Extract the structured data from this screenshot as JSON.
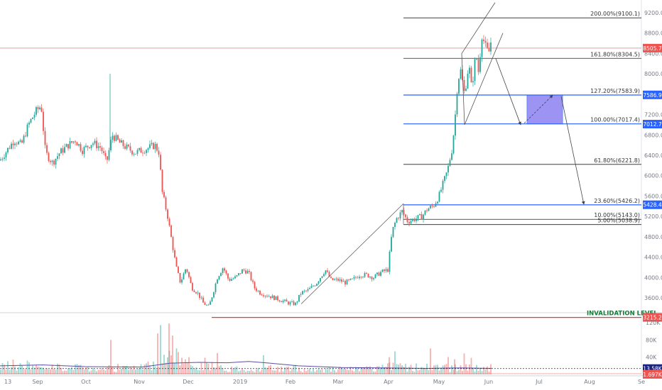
{
  "chart_data": [
    {
      "type": "candlestick",
      "title": "",
      "ylim": [
        3200,
        9300
      ],
      "y_ticks": [
        "3600.0",
        "4000.0",
        "4400.0",
        "4800.0",
        "5200.0",
        "5600.0",
        "6000.0",
        "6400.0",
        "6800.0",
        "7200.0",
        "7600.0",
        "8000.0",
        "8400.0",
        "8800.0",
        "9200.0"
      ],
      "x_ticks": [
        "13",
        "Sep",
        "Oct",
        "Nov",
        "Dec",
        "2019",
        "Feb",
        "Mar",
        "Apr",
        "May",
        "Jun",
        "Jul",
        "Aug",
        "Se"
      ],
      "grid": false,
      "series": [
        {
          "name": "price",
          "x": [
            "2018-08-13",
            "2018-08-20",
            "2018-08-27",
            "2018-09-03",
            "2018-09-10",
            "2018-09-17",
            "2018-09-24",
            "2018-10-01",
            "2018-10-08",
            "2018-10-15",
            "2018-10-22",
            "2018-10-29",
            "2018-11-05",
            "2018-11-12",
            "2018-11-19",
            "2018-11-26",
            "2018-12-03",
            "2018-12-10",
            "2018-12-17",
            "2018-12-24",
            "2018-12-31",
            "2019-01-07",
            "2019-01-14",
            "2019-01-21",
            "2019-01-28",
            "2019-02-04",
            "2019-02-11",
            "2019-02-18",
            "2019-02-25",
            "2019-03-04",
            "2019-03-11",
            "2019-03-18",
            "2019-03-25",
            "2019-04-01",
            "2019-04-08",
            "2019-04-15",
            "2019-04-22",
            "2019-04-29",
            "2019-05-06",
            "2019-05-13",
            "2019-05-20",
            "2019-05-27",
            "2019-06-03"
          ],
          "values": [
            6300,
            6500,
            7000,
            7300,
            6400,
            6500,
            6600,
            6550,
            6500,
            6600,
            6520,
            6450,
            6500,
            5600,
            4300,
            4000,
            3500,
            3400,
            4000,
            3800,
            3900,
            3600,
            3650,
            3550,
            3500,
            3450,
            3700,
            3900,
            3850,
            3850,
            3900,
            3980,
            4100,
            5000,
            5150,
            5250,
            5400,
            5750,
            6300,
            7800,
            8100,
            8600,
            8505.7
          ]
        },
        {
          "name": "volume",
          "x": [
            "2018-08-13",
            "2018-09-01",
            "2018-10-01",
            "2018-11-01",
            "2018-11-20",
            "2018-12-01",
            "2019-01-01",
            "2019-02-01",
            "2019-03-01",
            "2019-04-01",
            "2019-05-01",
            "2019-06-01"
          ],
          "values": [
            30,
            35,
            20,
            25,
            75,
            55,
            30,
            20,
            25,
            40,
            30,
            13.58
          ]
        }
      ],
      "volume_axis": {
        "ticks": [
          "40K",
          "80K",
          "120K"
        ]
      },
      "fibonacci_levels": [
        {
          "label": "200.00%(9100.1)",
          "value": 9100.1
        },
        {
          "label": "161.80%(8304.5)",
          "value": 8304.5
        },
        {
          "label": "127.20%(7583.9)",
          "value": 7583.9
        },
        {
          "label": "100.00%(7017.4)",
          "value": 7017.4
        },
        {
          "label": "61.80%(6221.8)",
          "value": 6221.8
        },
        {
          "label": "23.60%(5426.2)",
          "value": 5426.2
        },
        {
          "label": "10.00%(5143.0)",
          "value": 5143.0
        },
        {
          "label": "5.00%(5038.9)",
          "value": 5038.9
        }
      ],
      "price_badges": [
        {
          "text": "8505.7",
          "value": 8505.7,
          "color": "#ef5350"
        },
        {
          "text": "7586.9",
          "value": 7586.9,
          "color": "#2962ff"
        },
        {
          "text": "7012.7",
          "value": 7012.7,
          "color": "#2962ff"
        },
        {
          "text": "5428.4",
          "value": 5428.4,
          "color": "#2962ff"
        },
        {
          "text": "3215.2",
          "value": 3215.2,
          "color": "#ef5350"
        }
      ],
      "volume_badges": [
        {
          "text": "13.58K",
          "color": "#1a237e"
        },
        {
          "text": "1.697K",
          "color": "#ef5350"
        }
      ],
      "annotations": {
        "invalidation_label": "INVALIDATION LEVEL",
        "invalidation_value": 3215.2,
        "current_price_line": 8505.7
      },
      "colors": {
        "up": "#26a69a",
        "down": "#ef5350",
        "fib_line": "#000000",
        "blue_line": "#2962ff",
        "box_fill": "#7b6ff0",
        "invalidation": "#e53935",
        "invalidation_text": "#1b7a3a",
        "volume_ma": "#5c4ea3"
      }
    }
  ]
}
